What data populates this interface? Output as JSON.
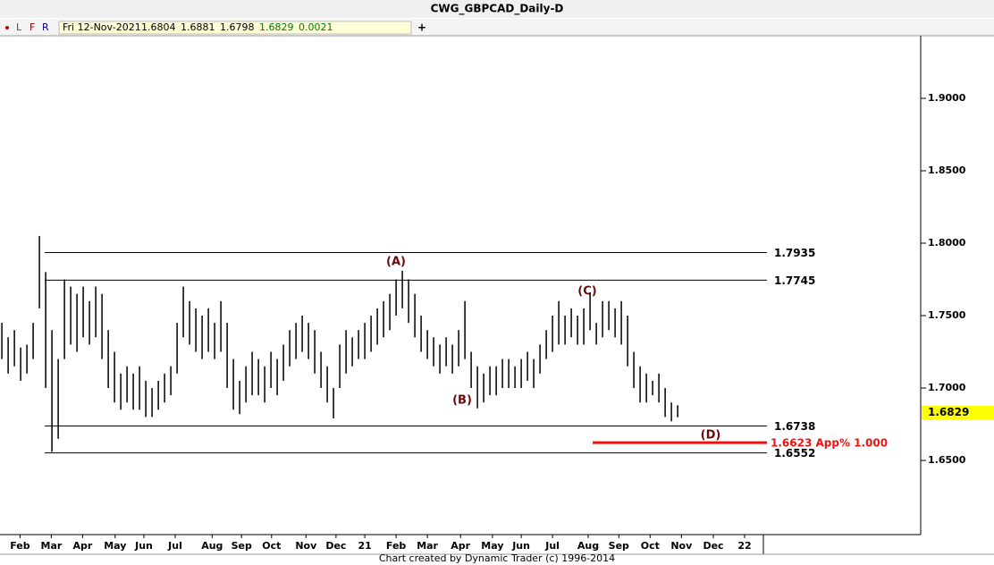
{
  "chart_data": {
    "type": "hlbar",
    "title": "CWG_GBPCAD_Daily-D",
    "toolbar": {
      "buttons": [
        "L",
        "F",
        "R"
      ],
      "date": "Fri 12-Nov-2021",
      "open": 1.6804,
      "high": 1.6881,
      "low": 1.6798,
      "close": 1.6829,
      "change": 0.0021
    },
    "footer": "Chart created by Dynamic Trader  (c) 1996-2014",
    "x": [
      0,
      1,
      2,
      3,
      4,
      5,
      6,
      7,
      8,
      9,
      10,
      11,
      12,
      13,
      14,
      15,
      16,
      17,
      18,
      19,
      20,
      21,
      22,
      23,
      24,
      25,
      26,
      27,
      28,
      29,
      30,
      31,
      32,
      33,
      34,
      35,
      36,
      37,
      38,
      39,
      40,
      41,
      42,
      43,
      44,
      45,
      46,
      47,
      48,
      49,
      50,
      51,
      52,
      53,
      54,
      55,
      56,
      57,
      58,
      59,
      60,
      61,
      62,
      63,
      64,
      65,
      66,
      67,
      68,
      69,
      70,
      71,
      72,
      73,
      74,
      75,
      76,
      77,
      78,
      79,
      80,
      81,
      82,
      83,
      84,
      85,
      86,
      87,
      88,
      89,
      90,
      91,
      92,
      93,
      94,
      95,
      96,
      97,
      98,
      99,
      100,
      101,
      102,
      103,
      104,
      105,
      106,
      107,
      108
    ],
    "high": [
      1.745,
      1.735,
      1.74,
      1.728,
      1.73,
      1.745,
      1.805,
      1.78,
      1.74,
      1.72,
      1.775,
      1.77,
      1.765,
      1.77,
      1.76,
      1.77,
      1.765,
      1.74,
      1.725,
      1.71,
      1.715,
      1.71,
      1.715,
      1.705,
      1.7,
      1.705,
      1.71,
      1.715,
      1.745,
      1.77,
      1.76,
      1.755,
      1.75,
      1.755,
      1.745,
      1.76,
      1.745,
      1.72,
      1.705,
      1.715,
      1.725,
      1.72,
      1.715,
      1.725,
      1.72,
      1.73,
      1.74,
      1.745,
      1.75,
      1.745,
      1.74,
      1.725,
      1.715,
      1.7,
      1.73,
      1.74,
      1.735,
      1.74,
      1.745,
      1.75,
      1.755,
      1.76,
      1.765,
      1.775,
      1.781,
      1.775,
      1.765,
      1.75,
      1.74,
      1.735,
      1.73,
      1.735,
      1.73,
      1.74,
      1.76,
      1.725,
      1.715,
      1.71,
      1.715,
      1.715,
      1.72,
      1.72,
      1.715,
      1.72,
      1.725,
      1.72,
      1.73,
      1.74,
      1.75,
      1.76,
      1.75,
      1.755,
      1.75,
      1.755,
      1.766,
      1.745,
      1.76,
      1.76,
      1.755,
      1.76,
      1.75,
      1.725,
      1.715,
      1.71,
      1.705,
      1.71,
      1.7,
      1.69,
      1.6881
    ],
    "low": [
      1.72,
      1.71,
      1.715,
      1.705,
      1.71,
      1.72,
      1.755,
      1.7,
      1.656,
      1.665,
      1.72,
      1.73,
      1.725,
      1.735,
      1.73,
      1.735,
      1.72,
      1.7,
      1.69,
      1.685,
      1.69,
      1.685,
      1.685,
      1.68,
      1.68,
      1.685,
      1.69,
      1.695,
      1.71,
      1.735,
      1.73,
      1.725,
      1.72,
      1.725,
      1.72,
      1.725,
      1.7,
      1.685,
      1.682,
      1.69,
      1.695,
      1.695,
      1.69,
      1.7,
      1.695,
      1.705,
      1.715,
      1.72,
      1.725,
      1.72,
      1.71,
      1.7,
      1.69,
      1.679,
      1.7,
      1.71,
      1.715,
      1.72,
      1.72,
      1.725,
      1.73,
      1.735,
      1.74,
      1.75,
      1.755,
      1.745,
      1.735,
      1.725,
      1.72,
      1.715,
      1.71,
      1.715,
      1.71,
      1.715,
      1.72,
      1.7,
      1.686,
      1.69,
      1.695,
      1.695,
      1.7,
      1.7,
      1.7,
      1.7,
      1.705,
      1.7,
      1.71,
      1.72,
      1.725,
      1.73,
      1.73,
      1.735,
      1.73,
      1.73,
      1.74,
      1.73,
      1.735,
      1.74,
      1.735,
      1.73,
      1.715,
      1.7,
      1.69,
      1.69,
      1.695,
      1.69,
      1.68,
      1.677,
      1.6798
    ],
    "color": "#000000",
    "xlim": [
      -0.3,
      121.7
    ],
    "xticks": [
      {
        "value": 2.9,
        "label": "Feb"
      },
      {
        "value": 7.9,
        "label": "Mar"
      },
      {
        "value": 12.9,
        "label": "Apr"
      },
      {
        "value": 18.1,
        "label": "May"
      },
      {
        "value": 22.7,
        "label": "Jun"
      },
      {
        "value": 27.7,
        "label": "Jul"
      },
      {
        "value": 33.6,
        "label": "Aug"
      },
      {
        "value": 38.3,
        "label": "Sep"
      },
      {
        "value": 43.1,
        "label": "Oct"
      },
      {
        "value": 48.6,
        "label": "Nov"
      },
      {
        "value": 53.4,
        "label": "Dec"
      },
      {
        "value": 58,
        "label": "21"
      },
      {
        "value": 63,
        "label": "Feb"
      },
      {
        "value": 68,
        "label": "Mar"
      },
      {
        "value": 73.3,
        "label": "Apr"
      },
      {
        "value": 78.4,
        "label": "May"
      },
      {
        "value": 83,
        "label": "Jun"
      },
      {
        "value": 88,
        "label": "Jul"
      },
      {
        "value": 93.7,
        "label": "Aug"
      },
      {
        "value": 98.6,
        "label": "Sep"
      },
      {
        "value": 103.6,
        "label": "Oct"
      },
      {
        "value": 108.6,
        "label": "Nov"
      },
      {
        "value": 113.7,
        "label": "Dec"
      },
      {
        "value": 118.7,
        "label": "22"
      }
    ],
    "ylim": [
      1.5988,
      1.9432
    ],
    "yticks": [
      {
        "value": 1.65,
        "label": "1.6500"
      },
      {
        "value": 1.7,
        "label": "1.7000"
      },
      {
        "value": 1.75,
        "label": "1.7500"
      },
      {
        "value": 1.8,
        "label": "1.8000"
      },
      {
        "value": 1.85,
        "label": "1.8500"
      },
      {
        "value": 1.9,
        "label": "1.9000"
      }
    ],
    "last_price": 1.6829,
    "levels": [
      {
        "value": 1.7935
      },
      {
        "value": 1.7745
      },
      {
        "value": 1.6738
      },
      {
        "value": 1.6552
      }
    ],
    "target": {
      "value": 1.6623,
      "label": "1.6623 App% 1.000",
      "color": "#ee1111"
    },
    "waves": [
      "(A)",
      "(B)",
      "(C)",
      "(D)"
    ]
  }
}
